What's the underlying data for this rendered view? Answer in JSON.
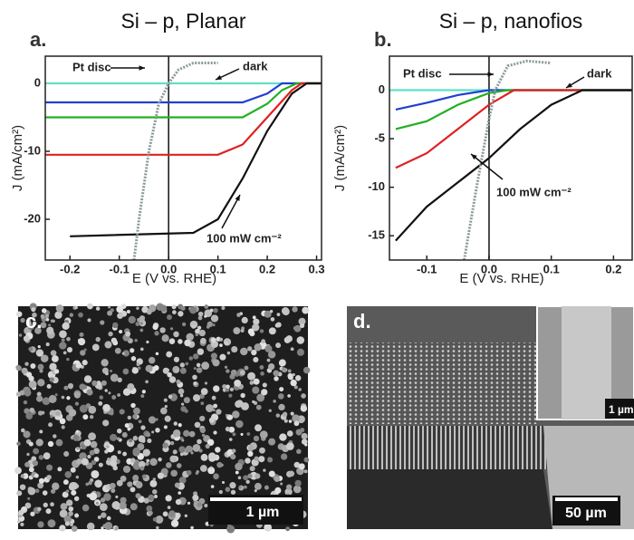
{
  "chart_data": [
    {
      "type": "line",
      "panel": "a.",
      "title": "Si – p, Planar",
      "xlabel": "E (V vs. RHE)",
      "ylabel": "J (mA/cm²)",
      "xlim": [
        -0.25,
        0.31
      ],
      "ylim": [
        -26,
        4
      ],
      "xticks": [
        -0.2,
        -0.1,
        {
          "value": 0,
          "label": "0.0"
        },
        0.1,
        0.2,
        0.3
      ],
      "yticks": [
        -20,
        -10,
        0
      ],
      "series": [
        {
          "name": "dark",
          "color": "#5fe0c8",
          "x": [
            -0.25,
            0.31
          ],
          "values": [
            0,
            0
          ]
        },
        {
          "color": "#2040d0",
          "x": [
            -0.25,
            0.15,
            0.2,
            0.23,
            0.31
          ],
          "values": [
            -2.8,
            -2.8,
            -1.5,
            0,
            0
          ]
        },
        {
          "color": "#20b020",
          "x": [
            -0.25,
            0.15,
            0.2,
            0.23,
            0.26,
            0.31
          ],
          "values": [
            -5,
            -5,
            -3,
            -1,
            0,
            0
          ]
        },
        {
          "color": "#e02020",
          "x": [
            -0.25,
            0.1,
            0.15,
            0.2,
            0.25,
            0.27,
            0.31
          ],
          "values": [
            -10.5,
            -10.5,
            -9,
            -5,
            -1,
            0,
            0
          ]
        },
        {
          "name": "100 mW cm⁻²",
          "color": "#111111",
          "x": [
            -0.2,
            0.05,
            0.1,
            0.15,
            0.2,
            0.25,
            0.28,
            0.31
          ],
          "values": [
            -22.5,
            -22,
            -20,
            -14,
            -7,
            -1.5,
            0,
            0
          ]
        },
        {
          "name": "Pt disc",
          "color": "#8a9a9a",
          "x": [
            -0.07,
            -0.06,
            -0.04,
            -0.02,
            0,
            0.02,
            0.05,
            0.1
          ],
          "values": [
            -26,
            -20,
            -10,
            -3,
            0,
            2,
            3,
            3
          ]
        }
      ]
    },
    {
      "type": "line",
      "panel": "b.",
      "title": "Si – p, nanofios",
      "xlabel": "E (V vs. RHE)",
      "ylabel": "J (mA/cm²)",
      "xlim": [
        -0.16,
        0.23
      ],
      "ylim": [
        -17.5,
        3.5
      ],
      "xticks": [
        -0.1,
        {
          "value": 0,
          "label": "0.0"
        },
        0.1,
        0.2
      ],
      "yticks": [
        -15,
        -10,
        -5,
        0
      ],
      "series": [
        {
          "name": "dark",
          "color": "#5fe0c8",
          "x": [
            -0.16,
            0.23
          ],
          "values": [
            0,
            0
          ]
        },
        {
          "color": "#2040d0",
          "x": [
            -0.15,
            -0.1,
            -0.05,
            0,
            0.23
          ],
          "values": [
            -2,
            -1.3,
            -0.5,
            0,
            0
          ]
        },
        {
          "color": "#20b020",
          "x": [
            -0.15,
            -0.1,
            -0.05,
            0,
            0.03,
            0.23
          ],
          "values": [
            -4,
            -3.2,
            -1.5,
            -0.3,
            0,
            0
          ]
        },
        {
          "color": "#e02020",
          "x": [
            -0.15,
            -0.1,
            -0.05,
            0,
            0.04,
            0.23
          ],
          "values": [
            -8,
            -6.5,
            -4,
            -1.5,
            0,
            0
          ]
        },
        {
          "name": "100 mW cm⁻²",
          "color": "#111111",
          "x": [
            -0.15,
            -0.1,
            -0.05,
            0,
            0.05,
            0.1,
            0.15,
            0.23
          ],
          "values": [
            -15.5,
            -12,
            -9.5,
            -7,
            -4,
            -1.5,
            0,
            0
          ]
        },
        {
          "name": "Pt disc",
          "color": "#8a9a9a",
          "x": [
            -0.04,
            -0.02,
            0,
            0.01,
            0.03,
            0.06,
            0.1
          ],
          "values": [
            -17.5,
            -10,
            -3,
            0,
            2.5,
            3,
            2.8
          ]
        }
      ]
    }
  ],
  "images": [
    {
      "panel": "c.",
      "scale_bar": "1 µm"
    },
    {
      "panel": "d.",
      "inset_scale_bar": "1 µm",
      "scale_bar": "50 µm"
    }
  ]
}
